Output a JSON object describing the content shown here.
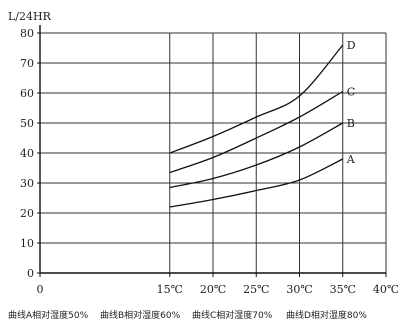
{
  "chart_data": {
    "type": "line",
    "ylabel": "L/24HR",
    "ylim": [
      0,
      80
    ],
    "xlim": [
      0,
      40
    ],
    "x_ticks": [
      0,
      15,
      20,
      25,
      30,
      35,
      40
    ],
    "x_tick_labels": [
      "0",
      "15℃",
      "20℃",
      "25℃",
      "30℃",
      "35℃",
      "40℃"
    ],
    "y_ticks": [
      0,
      10,
      20,
      30,
      40,
      50,
      60,
      70,
      80
    ],
    "y_tick_labels": [
      "0",
      "10",
      "20",
      "30",
      "40",
      "50",
      "60",
      "70",
      "80"
    ],
    "grid": true,
    "series": [
      {
        "name": "A",
        "x": [
          15,
          20,
          25,
          30,
          35
        ],
        "values": [
          22,
          24.5,
          27.5,
          31,
          38
        ]
      },
      {
        "name": "B",
        "x": [
          15,
          20,
          25,
          30,
          35
        ],
        "values": [
          28.5,
          31.5,
          36,
          42,
          50
        ]
      },
      {
        "name": "C",
        "x": [
          15,
          20,
          25,
          30,
          35
        ],
        "values": [
          33.5,
          38.5,
          45,
          52,
          60.5
        ]
      },
      {
        "name": "D",
        "x": [
          15,
          20,
          25,
          30,
          35
        ],
        "values": [
          40,
          45.5,
          52,
          59,
          76
        ]
      }
    ],
    "legend": [
      "曲线A相对湿度50%",
      "曲线B相对湿度60%",
      "曲线C相对湿度70%",
      "曲线D相对湿度80%"
    ]
  }
}
